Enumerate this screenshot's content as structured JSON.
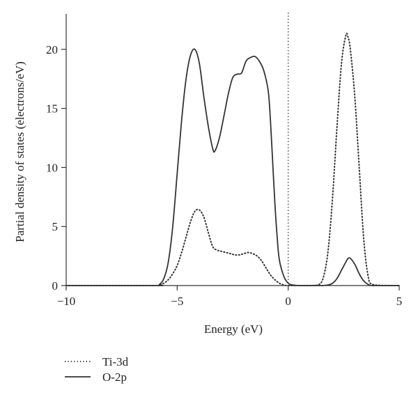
{
  "chart_data": {
    "type": "line",
    "title": "",
    "xlabel": "Energy (eV)",
    "ylabel": "Partial density of states (electrons/eV)",
    "xlim": [
      -10,
      5
    ],
    "ylim": [
      0,
      23
    ],
    "xticks": [
      -10,
      -5,
      0,
      5
    ],
    "yticks": [
      0,
      5,
      10,
      15,
      20
    ],
    "grid": false,
    "legend_position": "bottom-left, below plot",
    "fermi_level": 0,
    "series": [
      {
        "name": "Ti-3d",
        "style": "dotted",
        "color": "#333333",
        "x": [
          -10,
          -6.0,
          -5.8,
          -5.6,
          -5.4,
          -5.2,
          -5.0,
          -4.8,
          -4.6,
          -4.4,
          -4.2,
          -4.0,
          -3.8,
          -3.6,
          -3.4,
          -3.2,
          -3.0,
          -2.8,
          -2.6,
          -2.4,
          -2.2,
          -2.0,
          -1.8,
          -1.6,
          -1.4,
          -1.2,
          -1.0,
          -0.8,
          -0.6,
          -0.4,
          -0.2,
          0.0,
          0.5,
          1.0,
          1.4,
          1.6,
          1.8,
          2.0,
          2.2,
          2.4,
          2.6,
          2.7,
          2.8,
          3.0,
          3.2,
          3.4,
          3.6,
          3.8,
          4.5,
          5.0
        ],
        "y": [
          0,
          0,
          0.05,
          0.2,
          0.5,
          1.0,
          1.7,
          2.8,
          4.1,
          5.4,
          6.3,
          6.4,
          5.8,
          4.5,
          3.3,
          3.0,
          2.9,
          2.8,
          2.7,
          2.6,
          2.6,
          2.7,
          2.8,
          2.7,
          2.5,
          2.1,
          1.5,
          0.9,
          0.5,
          0.2,
          0.05,
          0,
          0,
          0,
          0.1,
          0.8,
          3.0,
          7.5,
          13.5,
          18.8,
          21.2,
          21.0,
          20.0,
          16.0,
          10.0,
          4.0,
          0.8,
          0.1,
          0,
          0
        ]
      },
      {
        "name": "O-2p",
        "style": "solid",
        "color": "#333333",
        "x": [
          -10,
          -6.0,
          -5.8,
          -5.6,
          -5.4,
          -5.2,
          -5.0,
          -4.8,
          -4.6,
          -4.4,
          -4.2,
          -4.0,
          -3.8,
          -3.6,
          -3.4,
          -3.3,
          -3.1,
          -2.9,
          -2.7,
          -2.5,
          -2.3,
          -2.1,
          -1.9,
          -1.7,
          -1.5,
          -1.3,
          -1.1,
          -0.9,
          -0.8,
          -0.7,
          -0.6,
          -0.5,
          -0.4,
          -0.2,
          0.0,
          0.2,
          0.5,
          1.0,
          1.5,
          1.8,
          2.0,
          2.2,
          2.4,
          2.6,
          2.7,
          2.8,
          3.0,
          3.2,
          3.4,
          3.6,
          3.8,
          4.5,
          5.0
        ],
        "y": [
          0,
          0,
          0.1,
          0.6,
          2.0,
          5.0,
          9.5,
          14.0,
          17.5,
          19.5,
          20.0,
          18.8,
          16.0,
          13.5,
          11.6,
          11.4,
          12.5,
          14.3,
          16.2,
          17.6,
          17.9,
          18.0,
          19.0,
          19.3,
          19.4,
          19.0,
          18.2,
          16.5,
          14.0,
          10.5,
          7.0,
          4.2,
          2.2,
          0.8,
          0.2,
          0.05,
          0,
          0,
          0,
          0.05,
          0.2,
          0.6,
          1.3,
          2.0,
          2.3,
          2.3,
          1.8,
          1.0,
          0.4,
          0.1,
          0,
          0,
          0
        ]
      }
    ]
  }
}
